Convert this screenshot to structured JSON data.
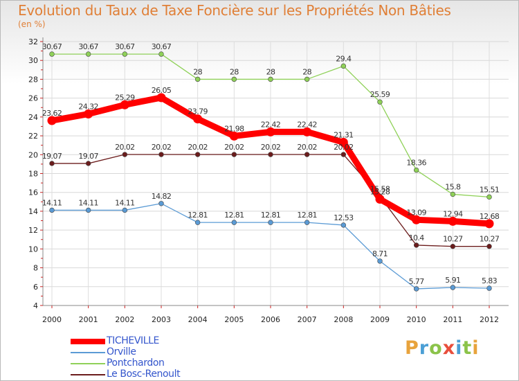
{
  "title": "Evolution du Taux de Taxe Foncière sur les Propriétés Non Bâties",
  "unit_label": "(en %)",
  "logo": {
    "letters": [
      "P",
      "r",
      "o",
      "x",
      "i",
      "t",
      "i"
    ],
    "colors": [
      "#e8a33c",
      "#4b9fd5",
      "#8bc34a",
      "#e84e3c",
      "#4b9fd5",
      "#8bc34a",
      "#e8a33c"
    ]
  },
  "chart_data": {
    "type": "line",
    "x": [
      "2000",
      "2001",
      "2002",
      "2003",
      "2004",
      "2005",
      "2006",
      "2007",
      "2008",
      "2009",
      "2010",
      "2011",
      "2012"
    ],
    "ylim": [
      4,
      32
    ],
    "yticks": [
      "4",
      "6",
      "8",
      "10",
      "12",
      "14",
      "16",
      "18",
      "20",
      "22",
      "24",
      "26",
      "28",
      "30",
      "32"
    ],
    "grid": true,
    "legend_position": "bottom-left",
    "series": [
      {
        "name": "Pontchardon",
        "color": "#8fd158",
        "values": [
          30.67,
          30.67,
          30.67,
          30.67,
          28,
          28,
          28,
          28,
          29.4,
          25.59,
          18.36,
          15.8,
          15.51
        ],
        "labels": [
          "30.67",
          "30.67",
          "30.67",
          "30.67",
          "28",
          "28",
          "28",
          "28",
          "29.4",
          "25.59",
          "18.36",
          "15.8",
          "15.51"
        ]
      },
      {
        "name": "Le Bosc-Renoult",
        "color": "#6b1c1c",
        "values": [
          19.07,
          19.07,
          20.02,
          20.02,
          20.02,
          20.02,
          20.02,
          20.02,
          20.02,
          15.58,
          10.4,
          10.27,
          10.27
        ],
        "labels": [
          "19.07",
          "19.07",
          "20.02",
          "20.02",
          "20.02",
          "20.02",
          "20.02",
          "20.02",
          "20.02",
          "15.58",
          "10.4",
          "10.27",
          "10.27"
        ]
      },
      {
        "name": "Orville",
        "color": "#5b9bd5",
        "values": [
          14.11,
          14.11,
          14.11,
          14.82,
          12.81,
          12.81,
          12.81,
          12.81,
          12.53,
          8.71,
          5.77,
          5.91,
          5.83
        ],
        "labels": [
          "14.11",
          "14.11",
          "14.11",
          "14.82",
          "12.81",
          "12.81",
          "12.81",
          "12.81",
          "12.53",
          "8.71",
          "5.77",
          "5.91",
          "5.83"
        ]
      },
      {
        "name": "TICHEVILLE",
        "color": "#ff0000",
        "values": [
          23.62,
          24.32,
          25.29,
          26.05,
          23.79,
          21.98,
          22.42,
          22.42,
          21.31,
          15.28,
          13.09,
          12.94,
          12.68
        ],
        "labels": [
          "23.62",
          "24.32",
          "25.29",
          "26.05",
          "23.79",
          "21.98",
          "22.42",
          "22.42",
          "21.31",
          "15.28",
          "13.09",
          "12.94",
          "12.68"
        ]
      }
    ]
  }
}
